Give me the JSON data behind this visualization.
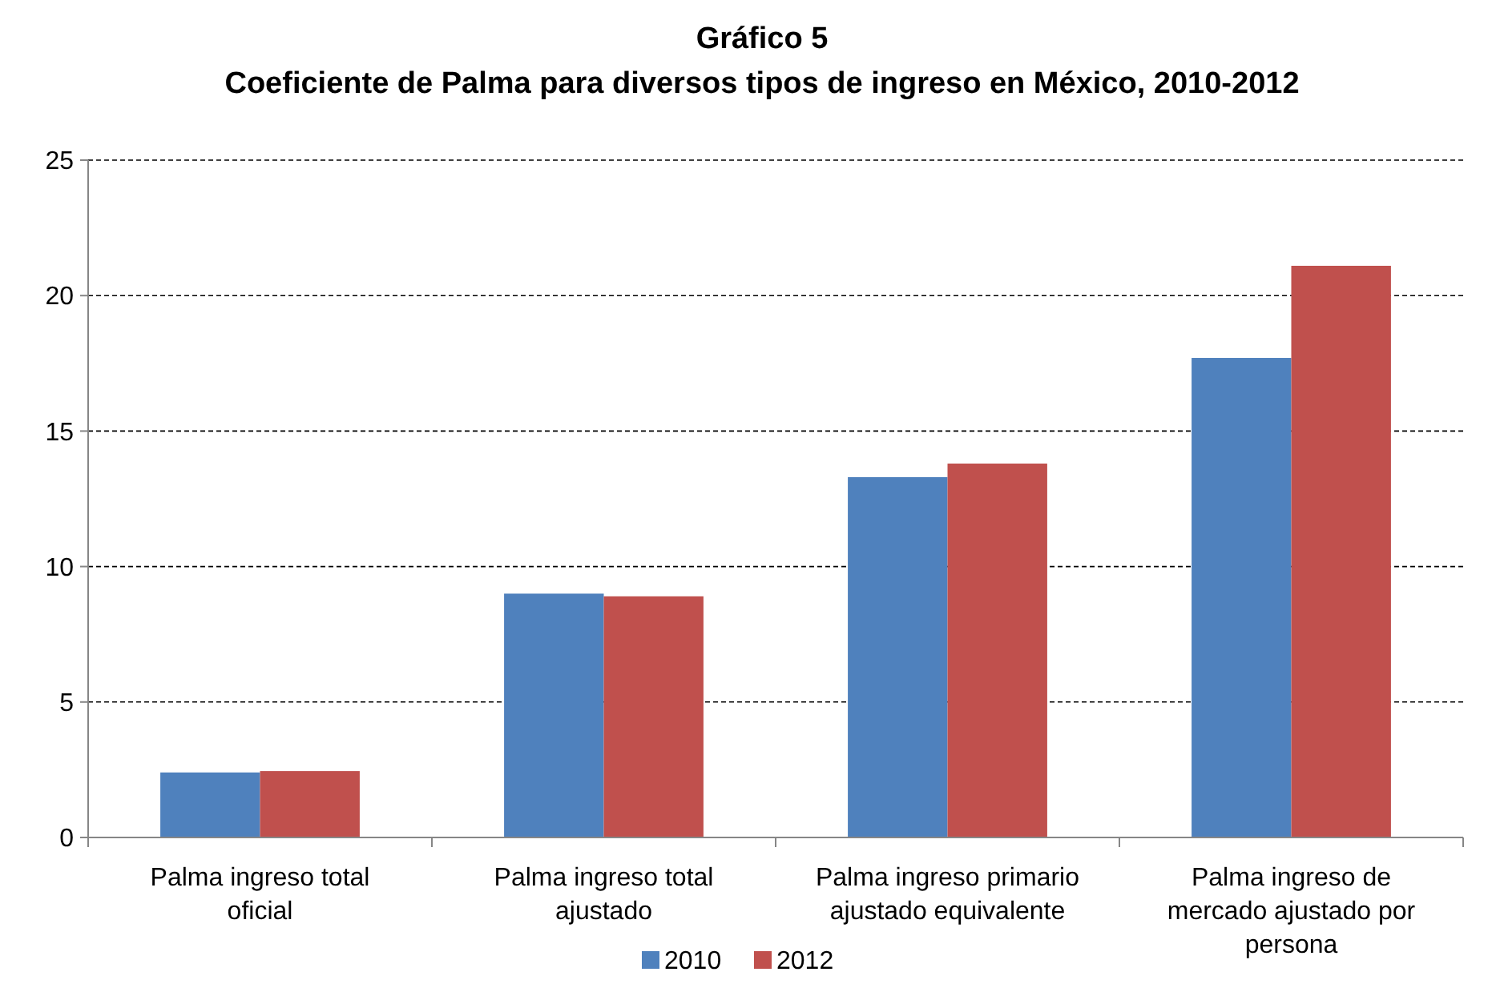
{
  "chart_data": {
    "type": "bar",
    "title": "Gráfico 5",
    "subtitle": "Coeficiente de Palma para diversos tipos de ingreso en México, 2010-2012",
    "categories": [
      "Palma ingreso total oficial",
      "Palma ingreso total ajustado",
      "Palma ingreso primario ajustado equivalente",
      "Palma ingreso de mercado ajustado por persona"
    ],
    "series": [
      {
        "name": "2010",
        "color": "#4f81bd",
        "values": [
          2.4,
          9.0,
          13.3,
          17.7
        ]
      },
      {
        "name": "2012",
        "color": "#c0504d",
        "values": [
          2.45,
          8.9,
          13.8,
          21.1
        ]
      }
    ],
    "ylim": [
      0,
      25
    ],
    "yticks": [
      0,
      5,
      10,
      15,
      20,
      25
    ],
    "grid": "y",
    "legend": "bottom"
  }
}
